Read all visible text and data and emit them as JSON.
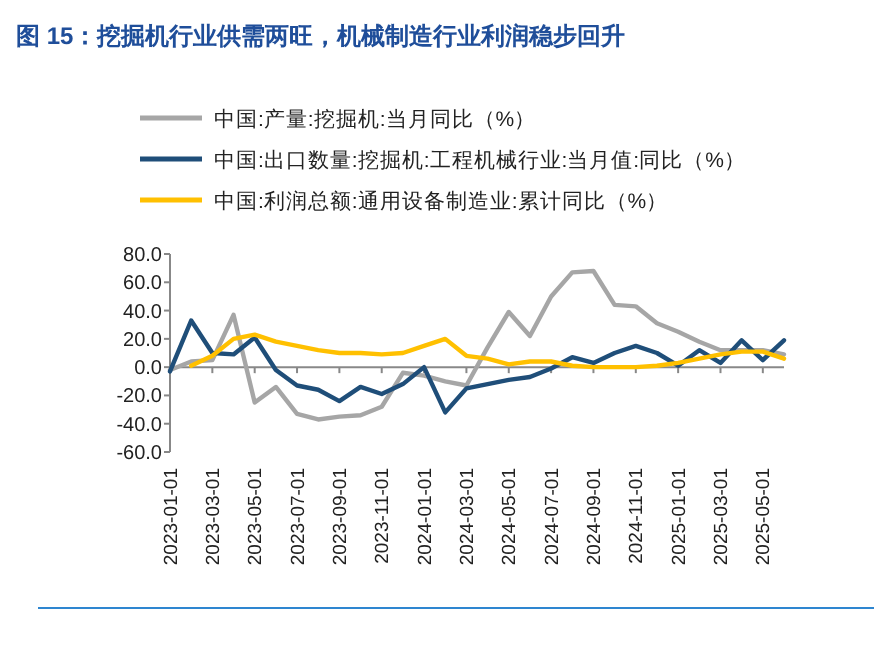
{
  "chart_data": {
    "type": "line",
    "title": "图 15：挖掘机行业供需两旺，机械制造行业利润稳步回升",
    "categories": [
      "2023-01-01",
      null,
      "2023-03-01",
      null,
      "2023-05-01",
      null,
      "2023-07-01",
      null,
      "2023-09-01",
      null,
      "2023-11-01",
      null,
      "2024-01-01",
      null,
      "2024-03-01",
      null,
      "2024-05-01",
      null,
      "2024-07-01",
      null,
      "2024-09-01",
      null,
      "2024-11-01",
      null,
      "2025-01-01",
      null,
      "2025-03-01",
      null,
      "2025-05-01",
      null
    ],
    "series": [
      {
        "name": "中国:产量:挖掘机:当月同比（%）",
        "color": "#a6a6a6",
        "values": [
          -2,
          4,
          5,
          37,
          -25,
          -14,
          -33,
          -37,
          -35,
          -34,
          -28,
          -4,
          -6,
          -10,
          -13,
          14,
          39,
          22,
          50,
          67,
          68,
          44,
          43,
          31,
          25,
          18,
          12,
          12,
          12,
          9
        ]
      },
      {
        "name": "中国:出口数量:挖掘机:工程机械行业:当月值:同比（%）",
        "color": "#1f4e79",
        "values": [
          -3,
          33,
          10,
          9,
          21,
          -2,
          -13,
          -16,
          -24,
          -14,
          -19,
          -12,
          0,
          -32,
          -15,
          -12,
          -9,
          -7,
          -1,
          7,
          3,
          10,
          15,
          10,
          1,
          12,
          3,
          19,
          5,
          19
        ]
      },
      {
        "name": "中国:利润总额:通用设备制造业:累计同比（%）",
        "color": "#ffc000",
        "values": [
          null,
          1,
          8,
          20,
          23,
          18,
          15,
          12,
          10,
          10,
          9,
          10,
          15,
          20,
          8,
          6,
          2,
          4,
          4,
          1,
          0,
          0,
          0,
          1,
          3,
          6,
          9,
          11,
          11,
          6
        ]
      }
    ],
    "ylim": [
      -60,
      80
    ],
    "yticks": [
      {
        "value": -60,
        "label": "-60.0"
      },
      {
        "value": -40,
        "label": "-40.0"
      },
      {
        "value": -20,
        "label": "-20.0"
      },
      {
        "value": 0,
        "label": "0.0"
      },
      {
        "value": 20,
        "label": "20.0"
      },
      {
        "value": 40,
        "label": "40.0"
      },
      {
        "value": 60,
        "label": "60.0"
      },
      {
        "value": 80,
        "label": "80.0"
      }
    ],
    "legend": "top",
    "marker": "none",
    "line_style": "solid"
  }
}
